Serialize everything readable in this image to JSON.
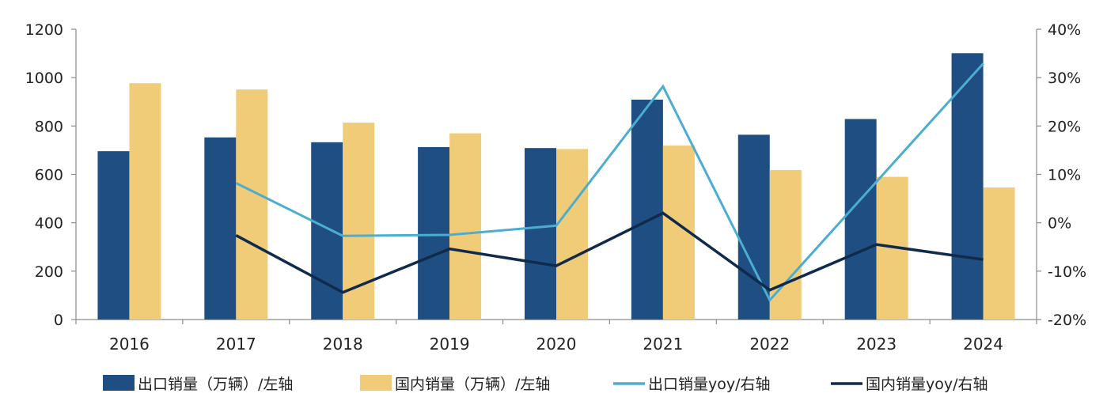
{
  "chart_data": {
    "type": "bar",
    "title": "",
    "categories": [
      "2016",
      "2017",
      "2018",
      "2019",
      "2020",
      "2021",
      "2022",
      "2023",
      "2024"
    ],
    "y_left": {
      "range": [
        0,
        1200
      ],
      "ticks": [
        "0",
        "200",
        "400",
        "600",
        "800",
        "1000",
        "1200"
      ]
    },
    "y_right": {
      "range": [
        -20,
        40
      ],
      "ticks": [
        "-20%",
        "-10%",
        "0%",
        "10%",
        "20%",
        "30%",
        "40%"
      ]
    },
    "series": [
      {
        "name": "出口销量（万辆）/左轴",
        "kind": "bar",
        "axis": "left",
        "color": "#1f4e82",
        "values": [
          696,
          753,
          733,
          713,
          709,
          909,
          764,
          829,
          1101
        ]
      },
      {
        "name": "国内销量（万辆）/左轴",
        "kind": "bar",
        "axis": "left",
        "color": "#f0cc78",
        "values": [
          977,
          951,
          814,
          770,
          705,
          719,
          618,
          590,
          546
        ]
      },
      {
        "name": "出口销量yoy/右轴",
        "kind": "line",
        "axis": "right",
        "color": "#4baed0",
        "values": [
          null,
          8.2,
          -2.7,
          -2.5,
          -0.6,
          28.2,
          -16.0,
          8.5,
          32.9
        ]
      },
      {
        "name": "国内销量yoy/右轴",
        "kind": "line",
        "axis": "right",
        "color": "#0f2a4a",
        "values": [
          null,
          -2.6,
          -14.4,
          -5.4,
          -8.9,
          2.0,
          -13.9,
          -4.5,
          -7.6
        ]
      }
    ],
    "grid": false,
    "legend_position": "bottom"
  }
}
